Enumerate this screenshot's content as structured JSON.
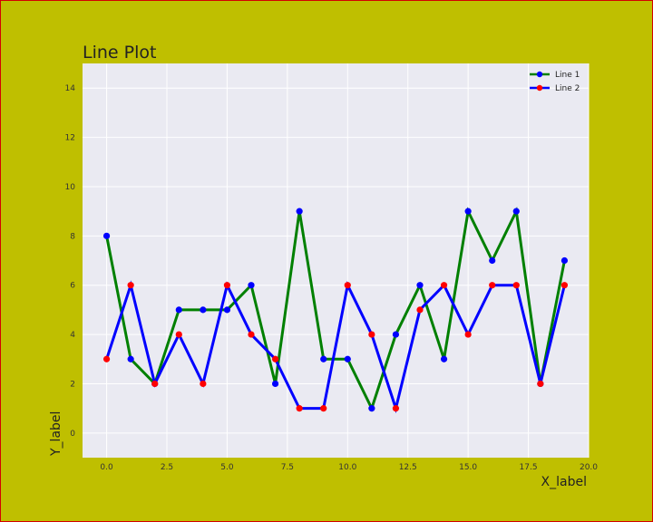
{
  "chart_data": {
    "type": "line",
    "title": "Line Plot",
    "xlabel": "X_label",
    "ylabel": "Y_label",
    "xlim": [
      -1,
      20
    ],
    "ylim": [
      -1,
      15
    ],
    "grid": true,
    "legend_position": "top-right",
    "x_ticks": [
      "0.0",
      "2.5",
      "5.0",
      "7.5",
      "10.0",
      "12.5",
      "15.0",
      "17.5",
      "20.0"
    ],
    "y_ticks": [
      "0",
      "2",
      "4",
      "6",
      "8",
      "10",
      "12",
      "14"
    ],
    "x": [
      0,
      1,
      2,
      3,
      4,
      5,
      6,
      7,
      8,
      9,
      10,
      11,
      12,
      13,
      14,
      15,
      16,
      17,
      18,
      19
    ],
    "series": [
      {
        "name": "Line 1",
        "line_color": "#008000",
        "marker_color": "#0000ff",
        "values": [
          8,
          3,
          2,
          5,
          5,
          5,
          6,
          2,
          9,
          3,
          3,
          1,
          4,
          6,
          3,
          9,
          7,
          9,
          2,
          7
        ]
      },
      {
        "name": "Line 2",
        "line_color": "#0000ff",
        "marker_color": "#ff0000",
        "values": [
          3,
          6,
          2,
          4,
          2,
          6,
          4,
          3,
          1,
          1,
          6,
          4,
          1,
          5,
          6,
          4,
          6,
          6,
          2,
          6
        ]
      }
    ],
    "colors": {
      "figure_background": "#bfbf00",
      "plot_background": "#eaeaf2",
      "grid": "#ffffff"
    }
  }
}
